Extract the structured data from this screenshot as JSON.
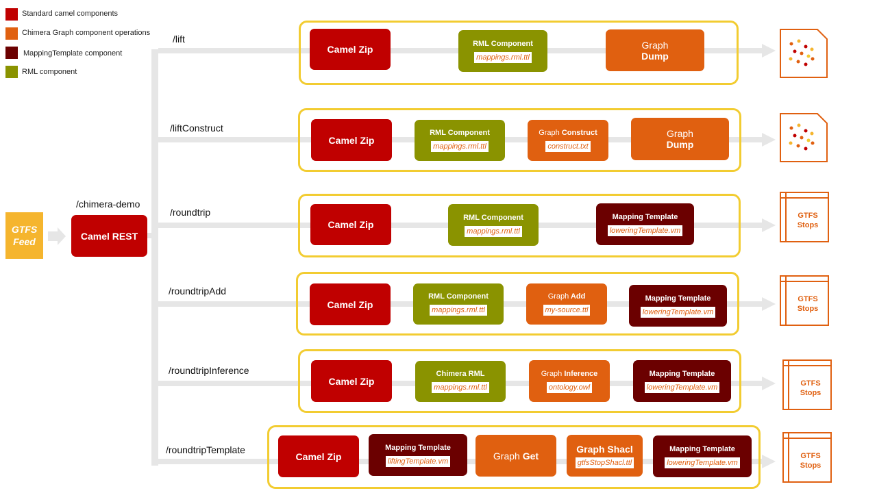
{
  "legend": [
    {
      "label": "Standard camel components",
      "color": "#c00000"
    },
    {
      "label": "Chimera Graph component operations",
      "color": "#e06010"
    },
    {
      "label": "MappingTemplate component",
      "color": "#6b0000"
    },
    {
      "label": "RML component",
      "color": "#8a9300"
    }
  ],
  "source": {
    "line1": "GTFS",
    "line2": "Feed"
  },
  "rest": {
    "route": "/chimera-demo",
    "label": "Camel REST"
  },
  "routes": [
    {
      "path": "/lift",
      "output": "graph"
    },
    {
      "path": "/liftConstruct",
      "output": "graph"
    },
    {
      "path": "/roundtrip",
      "output": "stops"
    },
    {
      "path": "/roundtripAdd",
      "output": "stops"
    },
    {
      "path": "/roundtripInference",
      "output": "stops"
    },
    {
      "path": "/roundtripTemplate",
      "output": "stops"
    }
  ],
  "components": {
    "camel_zip": "Camel Zip",
    "rml_component": "RML Component",
    "chimera_rml": "Chimera RML",
    "mapping_template": "Mapping Template",
    "graph": "Graph",
    "dump": "Dump",
    "construct": "Construct",
    "add": "Add",
    "inference": "Inference",
    "get": "Get",
    "graph_shacl": "Graph Shacl"
  },
  "files": {
    "mappings": "mappings.rml.ttl",
    "construct": "construct.txt",
    "lowering": "loweringTemplate.vm",
    "my_source": "my-source.ttl",
    "ontology": "ontology.owl",
    "lifting": "liftingTemplate.vm",
    "shacl": "gtfsStopShacl.ttl"
  },
  "output_stops": {
    "line1": "GTFS",
    "line2": "Stops"
  },
  "colors": {
    "camel": "#c00000",
    "graph": "#e06010",
    "template": "#6b0000",
    "rml": "#8a9300",
    "frame": "#f2cc31",
    "source": "#f5b52e"
  }
}
